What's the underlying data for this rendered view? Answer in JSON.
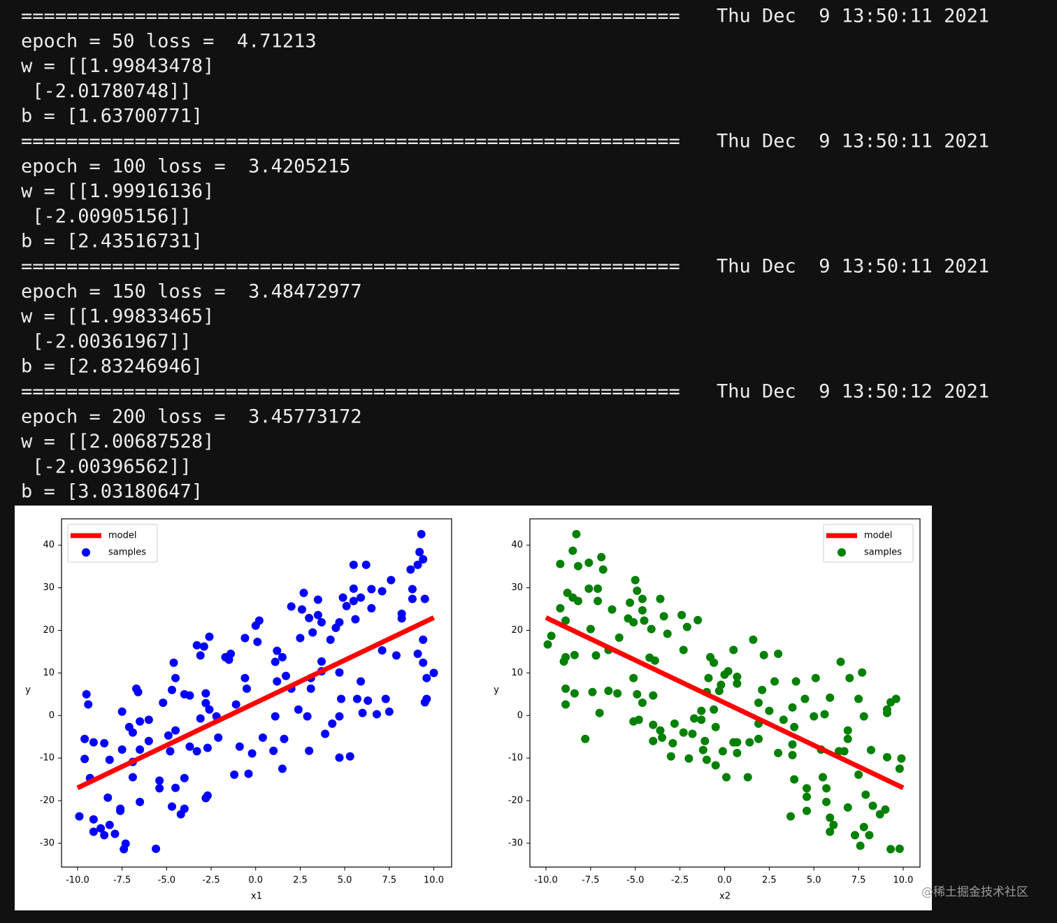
{
  "terminal": {
    "blocks": [
      {
        "separator": "==========================================================",
        "timestamp": "Thu Dec  9 13:50:11 2021",
        "lines": [
          "epoch = 50 loss =  4.71213",
          "w = [[1.99843478]",
          " [-2.01780748]]",
          "b = [1.63700771]"
        ]
      },
      {
        "separator": "==========================================================",
        "timestamp": "Thu Dec  9 13:50:11 2021",
        "lines": [
          "epoch = 100 loss =  3.4205215",
          "w = [[1.99916136]",
          " [-2.00905156]]",
          "b = [2.43516731]"
        ]
      },
      {
        "separator": "==========================================================",
        "timestamp": "Thu Dec  9 13:50:11 2021",
        "lines": [
          "epoch = 150 loss =  3.48472977",
          "w = [[1.99833465]",
          " [-2.00361967]]",
          "b = [2.83246946]"
        ]
      },
      {
        "separator": "==========================================================",
        "timestamp": "Thu Dec  9 13:50:12 2021",
        "lines": [
          "epoch = 200 loss =  3.45773172",
          "w = [[2.00687528]",
          " [-2.00396562]]",
          "b = [3.03180647]"
        ]
      }
    ]
  },
  "watermark": "@稀土掘金技术社区",
  "chart_data": [
    {
      "type": "scatter",
      "xlabel": "x1",
      "ylabel": "y",
      "xlim": [
        -10.9,
        11.0
      ],
      "ylim": [
        -35.6,
        46.2
      ],
      "xticks": [
        {
          "value": -10,
          "label": "-10.0"
        },
        -7.5,
        {
          "value": -5,
          "label": "-5.0"
        },
        -2.5,
        {
          "value": 0,
          "label": "0.0"
        },
        2.5,
        {
          "value": 5,
          "label": "5.0"
        },
        7.5,
        {
          "value": 10,
          "label": "10.0"
        }
      ],
      "yticks": [
        -30,
        -20,
        -10,
        0,
        10,
        20,
        30,
        40
      ],
      "legend": "upper left",
      "series": [
        {
          "name": "model",
          "type": "line",
          "color": "#ff0000",
          "x": [
            -10,
            10
          ],
          "values": [
            -17,
            23
          ]
        },
        {
          "name": "samples",
          "type": "scatter",
          "color": "#0000ff",
          "x": [
            9.3,
            9.2,
            9.4,
            9.1,
            8.7,
            5.5,
            6.2,
            7.6,
            6.5,
            7.1,
            5.5,
            2.7,
            4.9,
            5.5,
            5.9,
            8.8,
            9.5,
            8.8,
            2.0,
            2.6,
            3.5,
            3.5,
            5.1,
            6.5,
            8.2,
            8.2,
            0.2,
            0.0,
            3.0,
            3.7,
            4.7,
            5.6,
            -0.6,
            0.1,
            -2.6,
            -3.3,
            -2.9,
            -3.1,
            2.5,
            3.2,
            4.2,
            4.5,
            9.4,
            -4.6,
            -1.7,
            -1.4,
            -1.5,
            1.2,
            1.5,
            1.1,
            3.7,
            3.7,
            7.1,
            7.9,
            9.1,
            9.4,
            -4.5,
            -0.6,
            1.2,
            1.7,
            3.1,
            4.7,
            5.9,
            10.0,
            9.6,
            -6.7,
            -6.6,
            -4.7,
            -4.0,
            -3.7,
            -2.8,
            -0.5,
            2.0,
            3.1,
            -9.5,
            -9.4,
            -2.8,
            -2.6,
            -1.1,
            4.8,
            5.7,
            6.3,
            7.3,
            9.6,
            9.5,
            -7.5,
            -5.2,
            -6.5,
            -6.0,
            -7.1,
            -6.9,
            -3.1,
            -2.2,
            1.1,
            2.4,
            2.9,
            4.7,
            6.0,
            6.8,
            7.5,
            4.3,
            -9.6,
            -9.1,
            -8.5,
            -7.5,
            -6.0,
            -4.9,
            -4.5,
            -3.7,
            -3.3,
            -2.7,
            -2.1,
            -0.9,
            0.4,
            1.6,
            3.9,
            -9.6,
            -8.2,
            -6.9,
            -6.5,
            -4.8,
            -0.2,
            1.0,
            3.0,
            4.7,
            5.3,
            -1.2,
            -0.4,
            1.5,
            -6.9,
            -9.3,
            -5.4,
            -4.0,
            -5.4,
            -4.5,
            -2.7,
            -2.8,
            -8.3,
            -6.5,
            -4.7,
            -4.0,
            -4.2,
            -7.6,
            -7.6,
            -9.9,
            -9.1,
            -8.2,
            -8.7,
            -9.1,
            -8.5,
            -7.9,
            -7.3,
            -7.4,
            -5.6
          ],
          "values": [
            42.6,
            38.4,
            36.7,
            35.4,
            34.3,
            35.4,
            35.4,
            31.8,
            29.7,
            29.2,
            29.8,
            28.8,
            27.7,
            26.9,
            27.7,
            29.7,
            27.4,
            27.4,
            25.6,
            24.9,
            27.2,
            23.6,
            25.7,
            25.2,
            23.9,
            22.8,
            22.3,
            21.1,
            22.9,
            21.9,
            21.9,
            22.6,
            18.2,
            17.3,
            18.5,
            16.5,
            16.2,
            14.1,
            18.2,
            19.5,
            17.8,
            20.6,
            17.8,
            12.4,
            13.7,
            14.5,
            13.1,
            15.2,
            13.7,
            12.6,
            12.7,
            10.4,
            15.3,
            14.1,
            14.5,
            12.4,
            8.8,
            8.8,
            8.0,
            9.3,
            8.8,
            10.1,
            8.0,
            10.0,
            8.8,
            6.3,
            5.5,
            6.0,
            5.0,
            4.7,
            5.2,
            6.3,
            6.3,
            6.3,
            5.0,
            2.6,
            2.9,
            1.4,
            2.6,
            3.9,
            3.9,
            3.5,
            3.9,
            3.9,
            3.1,
            0.9,
            3.0,
            -1.4,
            -1.0,
            -2.7,
            -4.0,
            -0.7,
            -0.2,
            -0.2,
            1.4,
            -0.2,
            -0.2,
            0.6,
            0.3,
            0.9,
            -1.9,
            -5.5,
            -6.3,
            -6.5,
            -8.0,
            -6.0,
            -4.7,
            -3.5,
            -7.3,
            -8.4,
            -7.6,
            -5.2,
            -7.3,
            -5.2,
            -5.5,
            -4.3,
            -10.2,
            -10.4,
            -10.9,
            -8.0,
            -8.4,
            -8.9,
            -8.3,
            -8.3,
            -9.9,
            -9.6,
            -13.9,
            -13.7,
            -12.5,
            -14.5,
            -14.7,
            -15.3,
            -14.7,
            -17.1,
            -17.0,
            -18.8,
            -19.4,
            -19.3,
            -20.3,
            -21.4,
            -21.9,
            -23.2,
            -22.4,
            -21.9,
            -23.7,
            -24.4,
            -25.7,
            -26.5,
            -27.3,
            -28.1,
            -27.8,
            -30.1,
            -31.4,
            -31.3
          ]
        }
      ]
    },
    {
      "type": "scatter",
      "xlabel": "x2",
      "ylabel": "y",
      "xlim": [
        -10.9,
        10.94
      ],
      "ylim": [
        -35.6,
        46.2
      ],
      "xticks": [
        {
          "value": -10,
          "label": "-10.0"
        },
        -7.5,
        {
          "value": -5,
          "label": "-5.0"
        },
        -2.5,
        {
          "value": 0,
          "label": "0.0"
        },
        2.5,
        {
          "value": 5,
          "label": "5.0"
        },
        7.5,
        {
          "value": 10,
          "label": "10.0"
        }
      ],
      "yticks": [
        -30,
        -20,
        -10,
        0,
        10,
        20,
        30,
        40
      ],
      "legend": "upper right",
      "series": [
        {
          "name": "model",
          "type": "line",
          "color": "#ff0000",
          "x": [
            -10,
            10
          ],
          "values": [
            23,
            -17
          ]
        },
        {
          "name": "samples",
          "type": "scatter",
          "color": "#008000",
          "x": [
            -8.3,
            -8.5,
            -9.2,
            -8.2,
            -7.6,
            -6.9,
            -6.8,
            -7.6,
            -7.1,
            -8.8,
            -8.5,
            -8.2,
            -9.2,
            -7.1,
            -6.3,
            -5.0,
            -4.9,
            -5.3,
            -4.6,
            -3.6,
            -8.9,
            -5.4,
            -5.1,
            -4.6,
            -4.5,
            -3.4,
            -2.4,
            -1.5,
            -7.5,
            -5.9,
            -4.1,
            -3.2,
            -2.1,
            -9.9,
            -9.7,
            -8.9,
            -9.0,
            -8.4,
            -7.2,
            -6.5,
            -4.2,
            -3.9,
            -2.3,
            -0.8,
            -0.6,
            0.5,
            1.6,
            2.2,
            3.0,
            0.0,
            0.2,
            0.7,
            -0.2,
            -0.9,
            0.7,
            -5.1,
            2.8,
            4.0,
            5.1,
            6.5,
            7.0,
            7.7,
            -8.9,
            -8.4,
            -7.4,
            -6.5,
            -6.0,
            -4.9,
            -4.0,
            -1.0,
            -0.3,
            2.1,
            4.5,
            5.9,
            7.5,
            9.6,
            9.3,
            -8.9,
            -4.6,
            -7.0,
            -1.3,
            -0.6,
            1.9,
            2.5,
            3.8,
            5.0,
            5.6,
            7.8,
            9.1,
            9.1,
            -5.1,
            -4.8,
            -4.0,
            -3.6,
            -2.8,
            -2.3,
            -1.7,
            -1.3,
            -0.5,
            1.9,
            3.3,
            3.9,
            6.9,
            -7.8,
            -4.0,
            -3.5,
            -2.9,
            -1.8,
            -1.1,
            0.5,
            0.7,
            1.4,
            1.9,
            3.8,
            6.9,
            6.7,
            8.2,
            -3.0,
            -2.0,
            -1.2,
            -0.1,
            0.7,
            3.0,
            3.8,
            5.4,
            6.4,
            9.1,
            9.9,
            9.8,
            -1.0,
            -0.5,
            0.1,
            1.3,
            3.9,
            5.5,
            7.5,
            4.6,
            4.6,
            5.7,
            5.7,
            7.9,
            8.3,
            9.0,
            8.7,
            6.9,
            4.6,
            3.7,
            5.9,
            6.1,
            5.9,
            7.8,
            8.1,
            7.3,
            7.6,
            9.3,
            9.8
          ],
          "values": [
            42.6,
            38.7,
            35.6,
            35.1,
            35.9,
            37.2,
            34.3,
            29.8,
            29.8,
            28.8,
            27.7,
            26.9,
            25.2,
            26.9,
            24.9,
            31.8,
            29.3,
            26.5,
            27.4,
            27.4,
            22.3,
            22.8,
            21.9,
            24.7,
            22.3,
            23.3,
            23.6,
            22.4,
            20.3,
            18.3,
            20.3,
            19.2,
            20.8,
            16.7,
            18.7,
            13.7,
            12.7,
            14.2,
            14.1,
            15.4,
            13.6,
            12.9,
            15.4,
            13.7,
            12.4,
            15.4,
            17.8,
            14.2,
            14.5,
            9.6,
            10.4,
            9.1,
            7.2,
            8.8,
            7.5,
            8.8,
            8.0,
            8.0,
            8.8,
            12.6,
            8.8,
            10.1,
            6.3,
            5.2,
            5.5,
            5.8,
            5.2,
            5.0,
            4.7,
            5.5,
            5.8,
            6.0,
            3.9,
            4.2,
            3.9,
            3.9,
            3.1,
            2.6,
            3.0,
            0.6,
            1.1,
            1.4,
            3.0,
            1.1,
            1.9,
            -0.2,
            0.3,
            -0.2,
            1.4,
            0.6,
            -1.4,
            -1.0,
            -2.2,
            -3.5,
            -1.9,
            -4.0,
            -0.7,
            -1.0,
            -2.7,
            -1.9,
            -1.0,
            -2.7,
            -3.5,
            -5.5,
            -6.0,
            -5.2,
            -6.5,
            -4.3,
            -6.0,
            -6.3,
            -6.3,
            -6.3,
            -5.5,
            -6.8,
            -5.5,
            -8.4,
            -8.1,
            -9.6,
            -10.1,
            -8.1,
            -8.4,
            -8.8,
            -8.8,
            -9.3,
            -8.0,
            -8.4,
            -9.8,
            -10.1,
            -12.5,
            -10.4,
            -11.7,
            -14.5,
            -14.5,
            -15.0,
            -14.5,
            -13.9,
            -17.1,
            -19.1,
            -17.1,
            -20.3,
            -18.6,
            -21.2,
            -22.1,
            -23.2,
            -21.6,
            -22.4,
            -23.7,
            -24.0,
            -25.7,
            -27.3,
            -26.2,
            -28.1,
            -28.1,
            -30.6,
            -31.4,
            -31.3
          ]
        }
      ]
    }
  ]
}
